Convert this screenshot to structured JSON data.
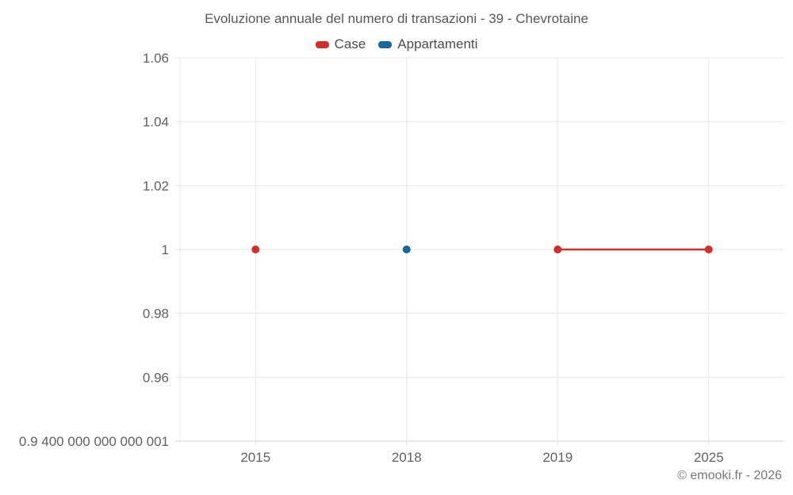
{
  "title": "Evoluzione annuale del numero di transazioni - 39 - Chevrotaine",
  "legend": [
    {
      "label": "Case",
      "color": "#d32d2c"
    },
    {
      "label": "Appartamenti",
      "color": "#17689f"
    }
  ],
  "credit": "© emooki.fr - 2026",
  "colors": {
    "case_red": "#d32d2c",
    "appartamenti_blue": "#17689f",
    "grid": "#e7e7e7",
    "axis": "#d6d6d6",
    "tick_text": "#616161",
    "title_text": "#57575b"
  },
  "chart_data": {
    "type": "line",
    "title": "Evoluzione annuale del numero di transazioni - 39 - Chevrotaine",
    "categories": [
      "2015",
      "2018",
      "2019",
      "2025"
    ],
    "series": [
      {
        "name": "Case",
        "color": "#d32d2c",
        "values": [
          1,
          null,
          1,
          1
        ]
      },
      {
        "name": "Appartamenti",
        "color": "#17689f",
        "values": [
          null,
          1,
          null,
          null
        ]
      }
    ],
    "xlabel": "",
    "ylabel": "",
    "ylim": [
      0.94,
      1.06
    ],
    "y_ticks": [
      {
        "value": 1.06,
        "label": "1.06"
      },
      {
        "value": 1.04,
        "label": "1.04"
      },
      {
        "value": 1.02,
        "label": "1.02"
      },
      {
        "value": 1.0,
        "label": "1"
      },
      {
        "value": 0.98,
        "label": "0.98"
      },
      {
        "value": 0.96,
        "label": "0.96"
      },
      {
        "value": 0.9400000000000001,
        "label": "0.9 400 000 000 000 001"
      }
    ],
    "grid": true,
    "legend_position": "top",
    "marker": "circle"
  }
}
